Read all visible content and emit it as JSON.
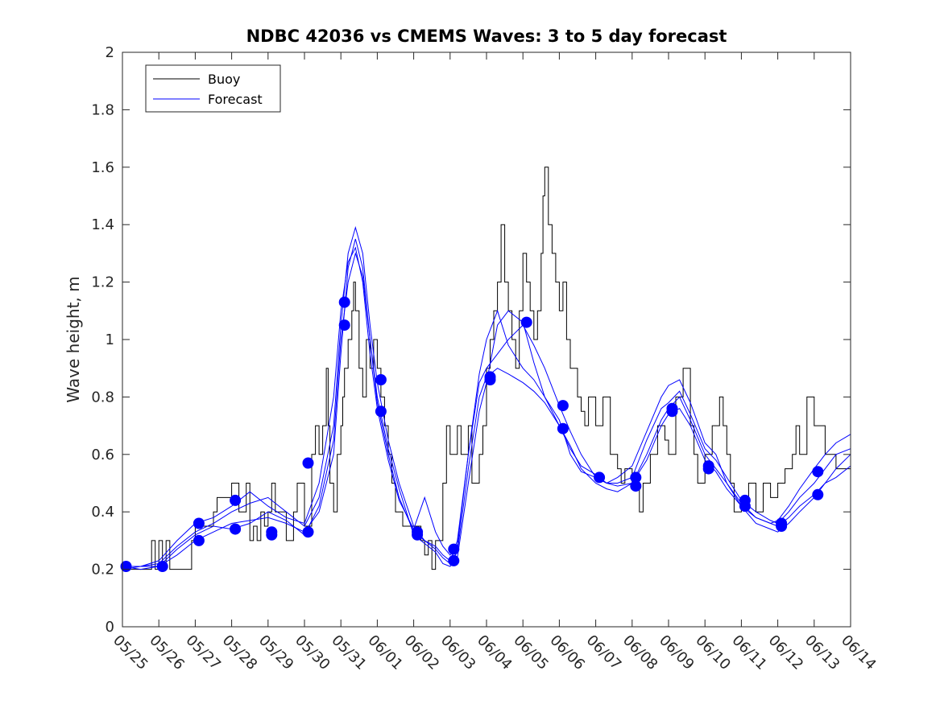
{
  "chart_data": {
    "type": "line",
    "title": "NDBC 42036 vs CMEMS Waves: 3 to 5 day forecast",
    "xlabel": "",
    "ylabel": "Wave height, m",
    "xlim": [
      0,
      20
    ],
    "ylim": [
      0,
      2
    ],
    "x_tick_labels": [
      "05/25",
      "05/26",
      "05/27",
      "05/28",
      "05/29",
      "05/30",
      "05/31",
      "06/01",
      "06/02",
      "06/03",
      "06/04",
      "06/05",
      "06/06",
      "06/07",
      "06/08",
      "06/09",
      "06/10",
      "06/11",
      "06/12",
      "06/13",
      "06/14"
    ],
    "y_ticks": [
      0,
      0.2,
      0.4,
      0.6,
      0.8,
      1,
      1.2,
      1.4,
      1.6,
      1.8,
      2
    ],
    "y_tick_labels": [
      "0",
      "0.2",
      "0.4",
      "0.6",
      "0.8",
      "1",
      "1.2",
      "1.4",
      "1.6",
      "1.8",
      "2"
    ],
    "grid": false,
    "legend_position": "top-left",
    "colors": {
      "buoy": "#000000",
      "forecast": "#0000ff"
    },
    "series": [
      {
        "name": "Buoy",
        "style": "step",
        "x": [
          0,
          0.8,
          0.9,
          1.0,
          1.1,
          1.2,
          1.3,
          1.9,
          2.0,
          2.5,
          2.6,
          3.0,
          3.2,
          3.4,
          3.5,
          3.6,
          3.7,
          3.8,
          3.9,
          4.0,
          4.1,
          4.2,
          4.5,
          4.7,
          4.8,
          5.0,
          5.2,
          5.3,
          5.4,
          5.5,
          5.6,
          5.65,
          5.7,
          5.8,
          5.9,
          6.0,
          6.05,
          6.1,
          6.2,
          6.3,
          6.35,
          6.4,
          6.5,
          6.6,
          6.7,
          6.8,
          6.9,
          7.0,
          7.1,
          7.2,
          7.3,
          7.4,
          7.5,
          7.7,
          7.8,
          8.0,
          8.2,
          8.3,
          8.4,
          8.5,
          8.6,
          8.8,
          8.9,
          9.0,
          9.2,
          9.3,
          9.5,
          9.6,
          9.7,
          9.8,
          9.9,
          10.0,
          10.1,
          10.2,
          10.3,
          10.4,
          10.5,
          10.6,
          10.7,
          10.8,
          10.9,
          11.0,
          11.1,
          11.2,
          11.3,
          11.4,
          11.5,
          11.55,
          11.6,
          11.7,
          11.8,
          11.9,
          12.0,
          12.1,
          12.2,
          12.3,
          12.5,
          12.6,
          12.7,
          12.8,
          13.0,
          13.2,
          13.4,
          13.6,
          13.7,
          13.8,
          14.0,
          14.2,
          14.3,
          14.5,
          14.7,
          14.9,
          15.0,
          15.2,
          15.4,
          15.6,
          15.7,
          15.8,
          16.0,
          16.2,
          16.4,
          16.5,
          16.6,
          16.7,
          16.8,
          17.0,
          17.2,
          17.4,
          17.6,
          17.8,
          18.0,
          18.2,
          18.4,
          18.5,
          18.6,
          18.8,
          19.0,
          19.3,
          19.6,
          20.0
        ],
        "y": [
          0.2,
          0.3,
          0.2,
          0.3,
          0.2,
          0.3,
          0.2,
          0.3,
          0.35,
          0.4,
          0.45,
          0.5,
          0.4,
          0.5,
          0.3,
          0.35,
          0.3,
          0.4,
          0.35,
          0.4,
          0.5,
          0.4,
          0.3,
          0.4,
          0.5,
          0.35,
          0.6,
          0.7,
          0.6,
          0.7,
          0.9,
          0.7,
          0.5,
          0.4,
          0.6,
          0.7,
          0.8,
          0.9,
          1.0,
          1.1,
          1.2,
          1.1,
          0.9,
          0.8,
          1.0,
          0.9,
          1.0,
          0.9,
          0.8,
          0.7,
          0.6,
          0.5,
          0.4,
          0.35,
          0.35,
          0.35,
          0.3,
          0.25,
          0.3,
          0.2,
          0.3,
          0.5,
          0.7,
          0.6,
          0.7,
          0.6,
          0.7,
          0.5,
          0.5,
          0.6,
          0.7,
          0.9,
          1.0,
          1.1,
          1.2,
          1.4,
          1.2,
          1.1,
          1.0,
          0.9,
          1.1,
          1.3,
          1.2,
          1.1,
          1.0,
          1.1,
          1.3,
          1.5,
          1.6,
          1.4,
          1.3,
          1.2,
          1.1,
          1.2,
          1.0,
          0.9,
          0.8,
          0.75,
          0.7,
          0.8,
          0.7,
          0.8,
          0.6,
          0.55,
          0.5,
          0.55,
          0.5,
          0.4,
          0.5,
          0.6,
          0.7,
          0.65,
          0.6,
          0.8,
          0.9,
          0.7,
          0.6,
          0.5,
          0.6,
          0.7,
          0.8,
          0.7,
          0.6,
          0.5,
          0.4,
          0.45,
          0.5,
          0.4,
          0.5,
          0.45,
          0.5,
          0.55,
          0.6,
          0.7,
          0.6,
          0.8,
          0.7,
          0.6,
          0.55,
          0.5
        ]
      },
      {
        "name": "Forecast",
        "lines": [
          {
            "x": [
              0,
              0.5,
              1.0,
              1.5,
              2.0,
              2.5,
              3.0,
              3.5,
              4.0,
              4.5,
              5.0,
              5.4,
              5.8,
              6.0,
              6.2,
              6.4,
              6.6,
              6.8,
              7.0,
              7.3,
              7.6,
              8.0,
              8.3,
              8.6,
              8.8,
              9.0,
              9.2,
              9.5,
              9.8,
              10.0,
              10.3,
              10.6,
              11.0,
              11.3,
              11.6,
              12.0,
              12.3,
              12.6,
              13.0,
              13.3,
              13.6,
              14.0,
              14.4,
              14.8,
              15.0,
              15.3,
              15.6,
              16.0,
              16.3,
              16.6,
              17.0,
              17.4,
              17.8,
              18.0,
              18.3,
              18.6,
              19.0,
              19.3,
              19.6,
              20.0
            ],
            "y": [
              0.21,
              0.21,
              0.21,
              0.25,
              0.3,
              0.33,
              0.36,
              0.37,
              0.38,
              0.36,
              0.33,
              0.4,
              0.6,
              0.95,
              1.25,
              1.35,
              1.25,
              1.0,
              0.78,
              0.6,
              0.45,
              0.33,
              0.3,
              0.28,
              0.25,
              0.23,
              0.3,
              0.6,
              0.85,
              0.9,
              0.95,
              1.0,
              1.05,
              0.98,
              0.9,
              0.77,
              0.68,
              0.6,
              0.52,
              0.5,
              0.49,
              0.5,
              0.6,
              0.72,
              0.76,
              0.8,
              0.72,
              0.6,
              0.55,
              0.5,
              0.43,
              0.38,
              0.36,
              0.35,
              0.38,
              0.42,
              0.46,
              0.5,
              0.55,
              0.6
            ]
          },
          {
            "x": [
              0,
              0.5,
              1.0,
              1.5,
              2.0,
              2.5,
              3.0,
              3.5,
              4.0,
              4.5,
              5.0,
              5.4,
              5.8,
              6.0,
              6.2,
              6.4,
              6.6,
              6.8,
              7.0,
              7.3,
              7.6,
              8.0,
              8.3,
              8.6,
              8.8,
              9.0,
              9.2,
              9.5,
              9.8,
              10.0,
              10.3,
              10.6,
              11.0,
              11.3,
              11.6,
              12.0,
              12.3,
              12.6,
              13.0,
              13.3,
              13.6,
              14.0,
              14.4,
              14.8,
              15.0,
              15.3,
              15.6,
              16.0,
              16.3,
              16.6,
              17.0,
              17.4,
              17.8,
              18.0,
              18.3,
              18.6,
              19.0,
              19.3,
              19.6,
              20.0
            ],
            "y": [
              0.21,
              0.21,
              0.22,
              0.28,
              0.33,
              0.36,
              0.4,
              0.43,
              0.45,
              0.4,
              0.35,
              0.45,
              0.7,
              1.05,
              1.3,
              1.39,
              1.3,
              1.05,
              0.85,
              0.65,
              0.5,
              0.35,
              0.3,
              0.27,
              0.24,
              0.22,
              0.26,
              0.55,
              0.8,
              0.87,
              0.9,
              0.88,
              0.85,
              0.82,
              0.78,
              0.7,
              0.62,
              0.56,
              0.53,
              0.5,
              0.5,
              0.52,
              0.65,
              0.76,
              0.78,
              0.82,
              0.74,
              0.62,
              0.58,
              0.52,
              0.44,
              0.4,
              0.37,
              0.36,
              0.4,
              0.45,
              0.5,
              0.55,
              0.6,
              0.62
            ]
          },
          {
            "x": [
              0,
              0.5,
              1.0,
              1.5,
              2.0,
              2.5,
              3.0,
              3.5,
              4.0,
              4.5,
              5.0,
              5.4,
              5.8,
              6.0,
              6.2,
              6.4,
              6.6,
              6.8,
              7.0,
              7.3,
              7.6,
              8.0,
              8.3,
              8.6,
              8.8,
              9.0,
              9.2,
              9.5,
              9.8,
              10.0,
              10.3,
              10.6,
              11.0,
              11.3,
              11.6,
              12.0,
              12.3,
              12.6,
              13.0,
              13.3,
              13.6,
              14.0,
              14.4,
              14.8,
              15.0,
              15.3,
              15.6,
              16.0,
              16.3,
              16.6,
              17.0,
              17.4,
              17.8,
              18.0,
              18.3,
              18.6,
              19.0,
              19.3,
              19.6,
              20.0
            ],
            "y": [
              0.21,
              0.2,
              0.21,
              0.27,
              0.32,
              0.35,
              0.34,
              0.36,
              0.4,
              0.37,
              0.32,
              0.42,
              0.65,
              1.0,
              1.2,
              1.3,
              1.22,
              1.0,
              0.8,
              0.62,
              0.48,
              0.32,
              0.29,
              0.26,
              0.22,
              0.21,
              0.24,
              0.5,
              0.75,
              0.85,
              1.05,
              1.1,
              1.06,
              0.92,
              0.8,
              0.7,
              0.63,
              0.55,
              0.5,
              0.48,
              0.47,
              0.5,
              0.58,
              0.7,
              0.74,
              0.76,
              0.7,
              0.58,
              0.54,
              0.48,
              0.42,
              0.36,
              0.34,
              0.33,
              0.36,
              0.4,
              0.45,
              0.5,
              0.52,
              0.56
            ]
          },
          {
            "x": [
              0,
              0.5,
              1.0,
              1.5,
              2.0,
              2.5,
              3.0,
              3.5,
              4.0,
              4.5,
              5.0,
              5.4,
              5.8,
              6.0,
              6.2,
              6.4,
              6.6,
              6.8,
              7.0,
              7.3,
              7.6,
              8.0,
              8.3,
              8.6,
              8.8,
              9.0,
              9.2,
              9.5,
              9.8,
              10.0,
              10.3,
              10.6,
              11.0,
              11.3,
              11.6,
              12.0,
              12.3,
              12.6,
              13.0,
              13.3,
              13.6,
              14.0,
              14.4,
              14.8,
              15.0,
              15.3,
              15.6,
              16.0,
              16.3,
              16.6,
              17.0,
              17.4,
              17.8,
              18.0,
              18.3,
              18.6,
              19.0,
              19.3,
              19.6,
              20.0
            ],
            "y": [
              0.2,
              0.21,
              0.23,
              0.3,
              0.36,
              0.38,
              0.42,
              0.47,
              0.42,
              0.38,
              0.36,
              0.5,
              0.8,
              1.1,
              1.27,
              1.32,
              1.2,
              0.95,
              0.76,
              0.58,
              0.44,
              0.34,
              0.45,
              0.33,
              0.28,
              0.25,
              0.28,
              0.6,
              0.88,
              1.0,
              1.1,
              0.98,
              0.9,
              0.86,
              0.8,
              0.72,
              0.6,
              0.54,
              0.52,
              0.5,
              0.52,
              0.56,
              0.68,
              0.8,
              0.84,
              0.86,
              0.78,
              0.64,
              0.6,
              0.5,
              0.42,
              0.38,
              0.36,
              0.37,
              0.42,
              0.48,
              0.55,
              0.6,
              0.64,
              0.67
            ]
          }
        ],
        "points": [
          [
            0.1,
            0.21
          ],
          [
            1.1,
            0.21
          ],
          [
            2.1,
            0.36
          ],
          [
            2.1,
            0.3
          ],
          [
            3.1,
            0.44
          ],
          [
            3.1,
            0.34
          ],
          [
            4.1,
            0.33
          ],
          [
            4.1,
            0.32
          ],
          [
            5.1,
            0.57
          ],
          [
            5.1,
            0.33
          ],
          [
            6.1,
            1.13
          ],
          [
            6.1,
            1.05
          ],
          [
            7.1,
            0.86
          ],
          [
            7.1,
            0.75
          ],
          [
            8.1,
            0.33
          ],
          [
            8.1,
            0.32
          ],
          [
            9.1,
            0.27
          ],
          [
            9.1,
            0.23
          ],
          [
            10.1,
            0.87
          ],
          [
            10.1,
            0.86
          ],
          [
            11.1,
            1.06
          ],
          [
            12.1,
            0.77
          ],
          [
            12.1,
            0.69
          ],
          [
            13.1,
            0.52
          ],
          [
            14.1,
            0.52
          ],
          [
            14.1,
            0.49
          ],
          [
            15.1,
            0.76
          ],
          [
            15.1,
            0.75
          ],
          [
            16.1,
            0.56
          ],
          [
            16.1,
            0.55
          ],
          [
            17.1,
            0.44
          ],
          [
            17.1,
            0.42
          ],
          [
            18.1,
            0.36
          ],
          [
            18.1,
            0.35
          ],
          [
            19.1,
            0.54
          ],
          [
            19.1,
            0.46
          ]
        ]
      }
    ]
  }
}
